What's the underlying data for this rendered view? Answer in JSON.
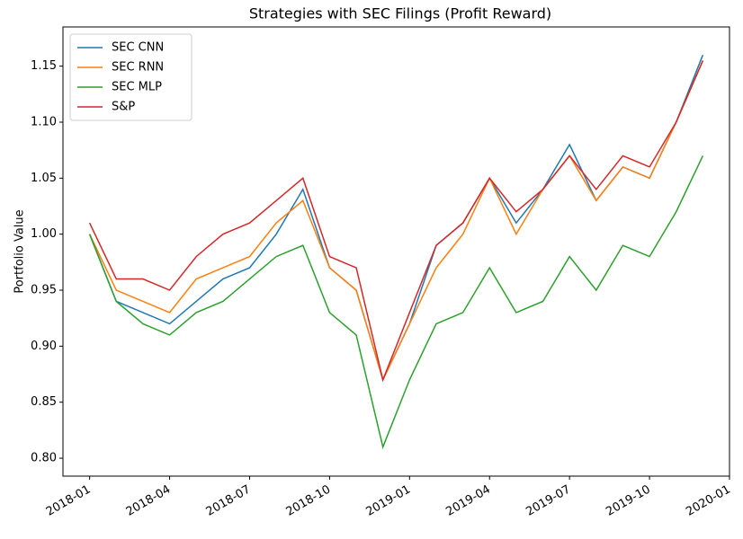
{
  "chart_data": {
    "type": "line",
    "title": "Strategies with SEC Filings (Profit Reward)",
    "ylabel": "Portfolio Value",
    "x": [
      "2018-01",
      "2018-02",
      "2018-03",
      "2018-04",
      "2018-05",
      "2018-06",
      "2018-07",
      "2018-08",
      "2018-09",
      "2018-10",
      "2018-11",
      "2018-12",
      "2019-01",
      "2019-02",
      "2019-03",
      "2019-04",
      "2019-05",
      "2019-06",
      "2019-07",
      "2019-08",
      "2019-09",
      "2019-10",
      "2019-11",
      "2019-12"
    ],
    "series": [
      {
        "name": "SEC CNN",
        "color": "#1f77b4",
        "values": [
          1.0,
          0.94,
          0.93,
          0.92,
          0.94,
          0.96,
          0.97,
          1.0,
          1.04,
          0.97,
          0.95,
          0.87,
          0.92,
          0.99,
          1.01,
          1.05,
          1.01,
          1.04,
          1.08,
          1.03,
          1.06,
          1.05,
          1.1,
          1.16
        ]
      },
      {
        "name": "SEC RNN",
        "color": "#ff7f0e",
        "values": [
          1.0,
          0.95,
          0.94,
          0.93,
          0.96,
          0.97,
          0.98,
          1.01,
          1.03,
          0.97,
          0.95,
          0.87,
          0.92,
          0.97,
          1.0,
          1.05,
          1.0,
          1.04,
          1.07,
          1.03,
          1.06,
          1.05,
          1.1,
          1.155
        ]
      },
      {
        "name": "SEC MLP",
        "color": "#2ca02c",
        "values": [
          1.0,
          0.94,
          0.92,
          0.91,
          0.93,
          0.94,
          0.96,
          0.98,
          0.99,
          0.93,
          0.91,
          0.81,
          0.87,
          0.92,
          0.93,
          0.97,
          0.93,
          0.94,
          0.98,
          0.95,
          0.99,
          0.98,
          1.02,
          1.07
        ]
      },
      {
        "name": "S&P",
        "color": "#d62728",
        "values": [
          1.01,
          0.96,
          0.96,
          0.95,
          0.98,
          1.0,
          1.01,
          1.03,
          1.05,
          0.98,
          0.97,
          0.87,
          0.93,
          0.99,
          1.01,
          1.05,
          1.02,
          1.04,
          1.07,
          1.04,
          1.07,
          1.06,
          1.1,
          1.155
        ]
      }
    ],
    "xlim": [
      "2017-12",
      "2020-01"
    ],
    "xticks": [
      "2018-01",
      "2018-04",
      "2018-07",
      "2018-10",
      "2019-01",
      "2019-04",
      "2019-07",
      "2019-10",
      "2020-01"
    ],
    "ylim": [
      0.784,
      1.185
    ],
    "yticks": [
      0.8,
      0.85,
      0.9,
      0.95,
      1.0,
      1.05,
      1.1,
      1.15
    ],
    "ytick_labels": [
      "0.80",
      "0.85",
      "0.90",
      "0.95",
      "1.00",
      "1.05",
      "1.10",
      "1.15"
    ],
    "legend": "upper left"
  }
}
